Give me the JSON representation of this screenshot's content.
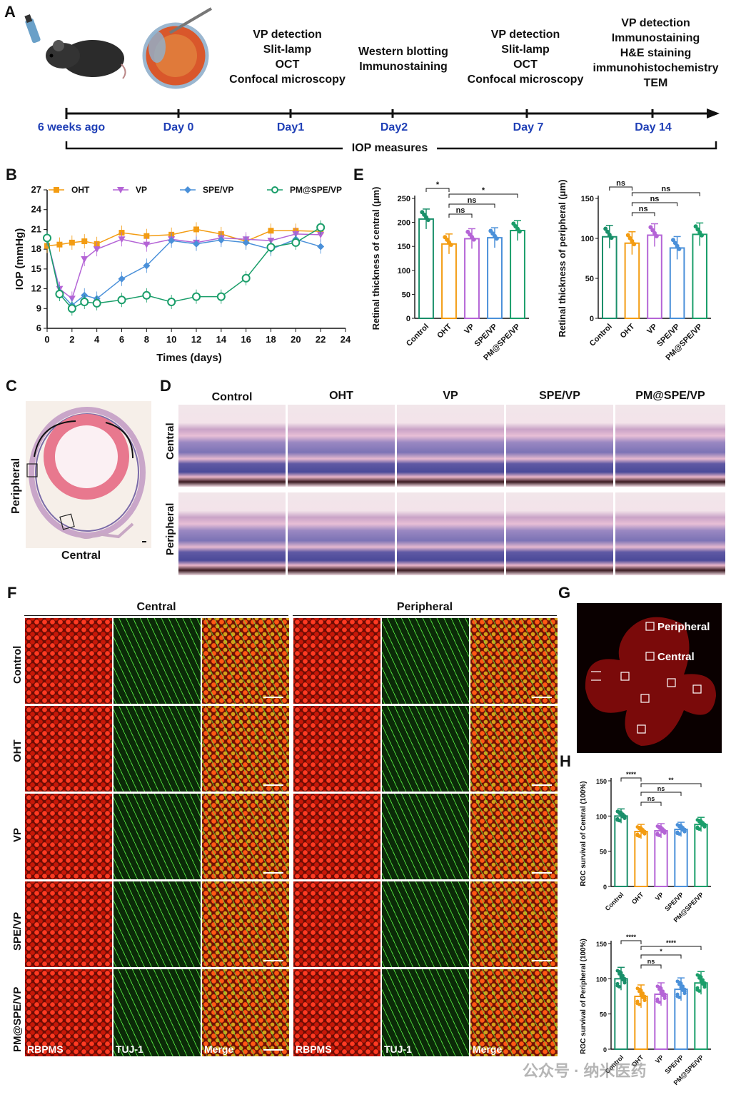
{
  "panel_labels": {
    "a": "A",
    "b": "B",
    "c": "C",
    "d": "D",
    "e": "E",
    "f": "F",
    "g": "G",
    "h": "H"
  },
  "timeline": {
    "days": [
      "6 weeks ago",
      "Day 0",
      "Day1",
      "Day2",
      "Day 7",
      "Day 14"
    ],
    "texts": [
      "VP detection\nSlit-lamp\nOCT\nConfocal microscopy",
      "Western blotting\nImmunostaining",
      "VP detection\nSlit-lamp\nOCT\nConfocal microscopy",
      "VP detection\nImmunostaining\nH&E staining\nimmunohistochemistry\nTEM"
    ],
    "iop_label": "IOP measures"
  },
  "panel_c": {
    "peripheral": "Peripheral",
    "central": "Central"
  },
  "panel_d": {
    "columns": [
      "Control",
      "OHT",
      "VP",
      "SPE/VP",
      "PM@SPE/VP"
    ],
    "rows": [
      "Central",
      "Peripheral"
    ]
  },
  "panel_f": {
    "sections": [
      "Central",
      "Peripheral"
    ],
    "rows": [
      "Control",
      "OHT",
      "VP",
      "SPE/VP",
      "PM@SPE/VP"
    ],
    "channels": [
      "RBPMS",
      "TUJ-1",
      "Merge"
    ]
  },
  "panel_g": {
    "peripheral": "Peripheral",
    "central": "Central"
  },
  "watermark": "公众号 · 纳米医药",
  "colors": {
    "OHT": "#f39c12",
    "VP": "#b464d6",
    "SPE/VP": "#4a90d9",
    "PM@SPE/VP": "#1a9e6a",
    "Control": "#1a8f6a",
    "timeline_blue": "#1f3fb6"
  },
  "chart_data": [
    {
      "id": "B",
      "type": "line",
      "xlabel": "Times (days)",
      "ylabel": "IOP (mmHg)",
      "xlim": [
        0,
        24
      ],
      "ylim": [
        6,
        27
      ],
      "xticks": [
        "0",
        "2",
        "4",
        "6",
        "8",
        "10",
        "12",
        "14",
        "16",
        "18",
        "20",
        "22",
        "24"
      ],
      "yticks": [
        "6",
        "9",
        "12",
        "15",
        "18",
        "21",
        "24",
        "27"
      ],
      "x": [
        0,
        1,
        2,
        3,
        4,
        6,
        8,
        10,
        12,
        14,
        16,
        18,
        20,
        22
      ],
      "series": [
        {
          "name": "OHT",
          "values": [
            18.5,
            18.7,
            19.0,
            19.2,
            18.8,
            20.5,
            20.0,
            20.2,
            21.0,
            20.3,
            19.2,
            20.8,
            20.8,
            20.7
          ],
          "color": "#f39c12",
          "marker": "square"
        },
        {
          "name": "VP",
          "values": [
            19.5,
            12.0,
            10.5,
            16.5,
            18.0,
            19.5,
            18.7,
            19.5,
            19.0,
            19.7,
            19.5,
            19.3,
            20.3,
            20.2
          ],
          "color": "#b464d6",
          "marker": "triangle"
        },
        {
          "name": "SPE/VP",
          "values": [
            19.5,
            11.5,
            9.5,
            11.0,
            10.5,
            13.5,
            15.5,
            19.3,
            18.8,
            19.4,
            19.0,
            18.0,
            19.5,
            18.4
          ],
          "color": "#4a90d9",
          "marker": "diamond"
        },
        {
          "name": "PM@SPE/VP",
          "values": [
            19.7,
            11.2,
            9.0,
            10.0,
            9.8,
            10.3,
            11.0,
            10.0,
            10.8,
            10.8,
            13.6,
            18.3,
            19.0,
            21.3
          ],
          "color": "#1a9e6a",
          "marker": "circle"
        }
      ],
      "legend": "top"
    },
    {
      "id": "E-central",
      "type": "bar",
      "categories": [
        "Control",
        "OHT",
        "VP",
        "SPE/VP",
        "PM@SPE/VP"
      ],
      "values": [
        207,
        155,
        166,
        168,
        183
      ],
      "ylabel": "Retinal thickness of central (μm)",
      "ylim": [
        0,
        250
      ],
      "yticks": [
        "0",
        "50",
        "100",
        "150",
        "200",
        "250"
      ],
      "sig": [
        "*",
        "ns",
        "ns",
        "*"
      ]
    },
    {
      "id": "E-peripheral",
      "type": "bar",
      "categories": [
        "Control",
        "OHT",
        "VP",
        "SPE/VP",
        "PM@SPE/VP"
      ],
      "values": [
        102,
        94,
        104,
        88,
        105
      ],
      "ylabel": "Retinal thickness of peripheral (μm)",
      "ylim": [
        0,
        150
      ],
      "yticks": [
        "0",
        "50",
        "100",
        "150"
      ],
      "sig": [
        "ns",
        "ns",
        "ns",
        "ns"
      ]
    },
    {
      "id": "H-central",
      "type": "bar",
      "categories": [
        "Control",
        "OHT",
        "VP",
        "SPE/VP",
        "PM@SPE/VP"
      ],
      "values": [
        100,
        78,
        79,
        81,
        88
      ],
      "ylabel": "RGC survival of Central (100%)",
      "ylim": [
        0,
        150
      ],
      "yticks": [
        "0",
        "50",
        "100",
        "150"
      ],
      "sig": [
        "****",
        "ns",
        "ns",
        "**"
      ]
    },
    {
      "id": "H-peripheral",
      "type": "bar",
      "categories": [
        "Control",
        "OHT",
        "VP",
        "SPE/VP",
        "PM@SPE/VP"
      ],
      "values": [
        100,
        75,
        78,
        85,
        94
      ],
      "ylabel": "RGC survival of Peripheral (100%)",
      "ylim": [
        0,
        150
      ],
      "yticks": [
        "0",
        "50",
        "100",
        "150"
      ],
      "sig": [
        "****",
        "ns",
        "*",
        "****"
      ]
    }
  ]
}
